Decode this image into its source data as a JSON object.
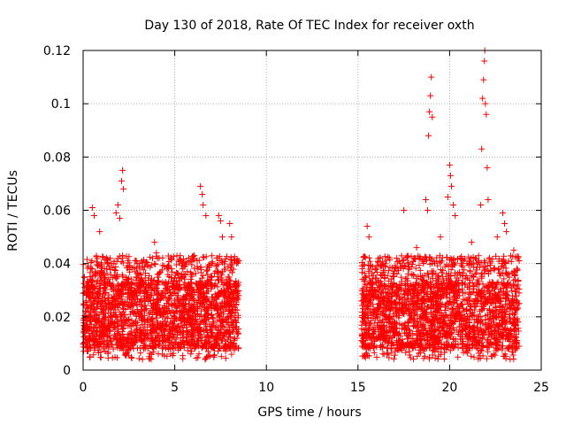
{
  "chart_data": {
    "type": "scatter",
    "title": "Day 130 of 2018, Rate Of TEC Index for receiver oxth",
    "xlabel": "GPS time / hours",
    "ylabel": "ROTI / TECUs",
    "xlim": [
      0,
      25
    ],
    "ylim": [
      0,
      0.12
    ],
    "xticks": [
      0,
      5,
      10,
      15,
      20,
      25
    ],
    "xtick_labels": [
      "0",
      "5",
      "10",
      "15",
      "20",
      "25"
    ],
    "yticks": [
      0,
      0.02,
      0.04,
      0.06,
      0.08,
      0.1,
      0.12
    ],
    "ytick_labels": [
      "0",
      "0.02",
      "0.04",
      "0.06",
      "0.08",
      "0.1",
      "0.12"
    ],
    "grid": true,
    "marker": "+",
    "color": "#ff0000",
    "series": [
      {
        "name": "ROTI",
        "segments": [
          {
            "x_start": 0.0,
            "x_end": 8.5,
            "typical_low": 0.008,
            "typical_high": 0.033
          },
          {
            "x_start": 15.2,
            "x_end": 23.8,
            "typical_low": 0.008,
            "typical_high": 0.033
          }
        ],
        "notable_points": [
          {
            "x": 0.5,
            "y": 0.061
          },
          {
            "x": 0.6,
            "y": 0.058
          },
          {
            "x": 0.9,
            "y": 0.052
          },
          {
            "x": 1.8,
            "y": 0.059
          },
          {
            "x": 1.9,
            "y": 0.062
          },
          {
            "x": 2.0,
            "y": 0.057
          },
          {
            "x": 2.1,
            "y": 0.071
          },
          {
            "x": 2.15,
            "y": 0.075
          },
          {
            "x": 2.2,
            "y": 0.068
          },
          {
            "x": 3.9,
            "y": 0.048
          },
          {
            "x": 4.0,
            "y": 0.044
          },
          {
            "x": 5.3,
            "y": 0.043
          },
          {
            "x": 6.4,
            "y": 0.069
          },
          {
            "x": 6.5,
            "y": 0.066
          },
          {
            "x": 6.55,
            "y": 0.062
          },
          {
            "x": 6.7,
            "y": 0.058
          },
          {
            "x": 7.4,
            "y": 0.058
          },
          {
            "x": 7.5,
            "y": 0.056
          },
          {
            "x": 7.6,
            "y": 0.05
          },
          {
            "x": 8.0,
            "y": 0.055
          },
          {
            "x": 8.1,
            "y": 0.05
          },
          {
            "x": 15.5,
            "y": 0.054
          },
          {
            "x": 15.6,
            "y": 0.05
          },
          {
            "x": 16.2,
            "y": 0.042
          },
          {
            "x": 17.1,
            "y": 0.042
          },
          {
            "x": 17.5,
            "y": 0.06
          },
          {
            "x": 18.2,
            "y": 0.046
          },
          {
            "x": 18.7,
            "y": 0.064
          },
          {
            "x": 18.8,
            "y": 0.06
          },
          {
            "x": 18.85,
            "y": 0.088
          },
          {
            "x": 18.9,
            "y": 0.097
          },
          {
            "x": 18.95,
            "y": 0.103
          },
          {
            "x": 19.0,
            "y": 0.11
          },
          {
            "x": 19.05,
            "y": 0.095
          },
          {
            "x": 19.5,
            "y": 0.05
          },
          {
            "x": 19.9,
            "y": 0.065
          },
          {
            "x": 20.0,
            "y": 0.077
          },
          {
            "x": 20.05,
            "y": 0.073
          },
          {
            "x": 20.1,
            "y": 0.069
          },
          {
            "x": 20.2,
            "y": 0.062
          },
          {
            "x": 20.3,
            "y": 0.058
          },
          {
            "x": 21.2,
            "y": 0.048
          },
          {
            "x": 21.7,
            "y": 0.062
          },
          {
            "x": 21.75,
            "y": 0.083
          },
          {
            "x": 21.8,
            "y": 0.102
          },
          {
            "x": 21.85,
            "y": 0.109
          },
          {
            "x": 21.9,
            "y": 0.116
          },
          {
            "x": 21.92,
            "y": 0.12
          },
          {
            "x": 21.95,
            "y": 0.1
          },
          {
            "x": 22.0,
            "y": 0.096
          },
          {
            "x": 22.05,
            "y": 0.076
          },
          {
            "x": 22.1,
            "y": 0.064
          },
          {
            "x": 22.6,
            "y": 0.05
          },
          {
            "x": 22.9,
            "y": 0.059
          },
          {
            "x": 23.0,
            "y": 0.055
          },
          {
            "x": 23.1,
            "y": 0.052
          },
          {
            "x": 23.5,
            "y": 0.045
          }
        ]
      }
    ]
  }
}
